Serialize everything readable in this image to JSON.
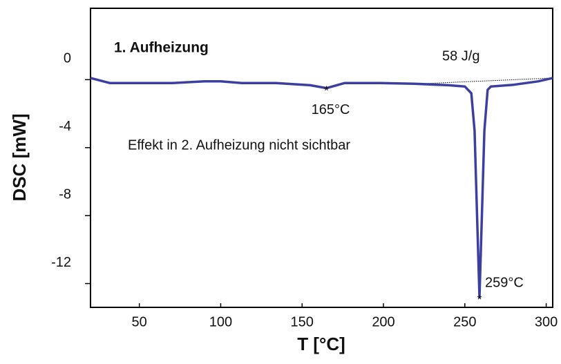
{
  "chart_data": {
    "type": "line",
    "title": "1. Aufheizung",
    "xlabel": "T [°C]",
    "ylabel": "DSC [mW]",
    "note": "Effekt in 2. Aufheizung nicht sichtbar",
    "color": "#3d3fa0",
    "x": [
      20,
      32,
      50,
      70,
      90,
      100,
      113,
      134,
      155,
      165,
      176,
      198,
      219,
      240,
      250,
      254,
      256,
      257.5,
      259,
      260.5,
      262,
      264,
      266,
      280,
      295,
      304
    ],
    "values": [
      0.1,
      -0.2,
      -0.2,
      -0.2,
      -0.1,
      -0.1,
      -0.2,
      -0.2,
      -0.33,
      -0.5,
      -0.2,
      -0.2,
      -0.24,
      -0.33,
      -0.4,
      -0.8,
      -3,
      -8,
      -12.8,
      -8,
      -3,
      -0.6,
      -0.4,
      -0.3,
      -0.1,
      0.1
    ],
    "markers": [
      {
        "x": 165,
        "y": -0.5,
        "label": "165°C"
      },
      {
        "x": 259,
        "y": -12.8,
        "label": "259°C"
      }
    ],
    "baseline": {
      "x": [
        220,
        304
      ],
      "values": [
        -0.25,
        0.1
      ],
      "label": "58 J/g"
    },
    "xlim": [
      20,
      304
    ],
    "ylim": [
      -13.4,
      4.2
    ],
    "xticks": [
      50,
      100,
      150,
      200,
      250,
      300
    ],
    "yticks": [
      0,
      -4,
      -8,
      -12
    ]
  }
}
